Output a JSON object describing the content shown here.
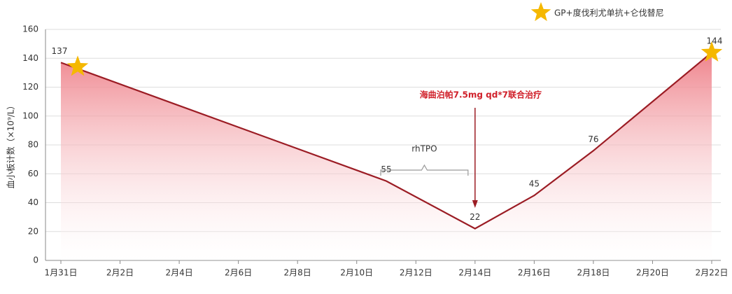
{
  "chart_data": {
    "type": "area",
    "y_label": "血小板计数（×10⁹/L）",
    "x": [
      "1月31日",
      "2月11日",
      "2月14日",
      "2月16日",
      "2月18日",
      "2月22日"
    ],
    "series": [
      {
        "name": "GP+度伐利尤单抗+仑伐替尼",
        "color": "#9b1c24",
        "values": [
          137,
          55,
          22,
          45,
          76,
          144
        ]
      }
    ],
    "star_at": [
      "1月31日",
      "2月22日"
    ],
    "star_color": "#f5b800",
    "xticks": [
      "1月31日",
      "2月2日",
      "2月4日",
      "2月6日",
      "2月8日",
      "2月10日",
      "2月12日",
      "2月14日",
      "2月16日",
      "2月18日",
      "2月20日",
      "2月22日"
    ],
    "ylim": [
      0,
      160
    ],
    "yticks": [
      0,
      20,
      40,
      60,
      80,
      100,
      120,
      140,
      160
    ],
    "grid": true,
    "legend": "top-right",
    "annotations": [
      {
        "text": "海曲泊帕7.5mg qd*7联合治疗",
        "x": "2月14日",
        "color": "#d0202a"
      },
      {
        "text": "rhTPO",
        "x_start": "2月11日",
        "x_end": "2月14日"
      }
    ]
  }
}
